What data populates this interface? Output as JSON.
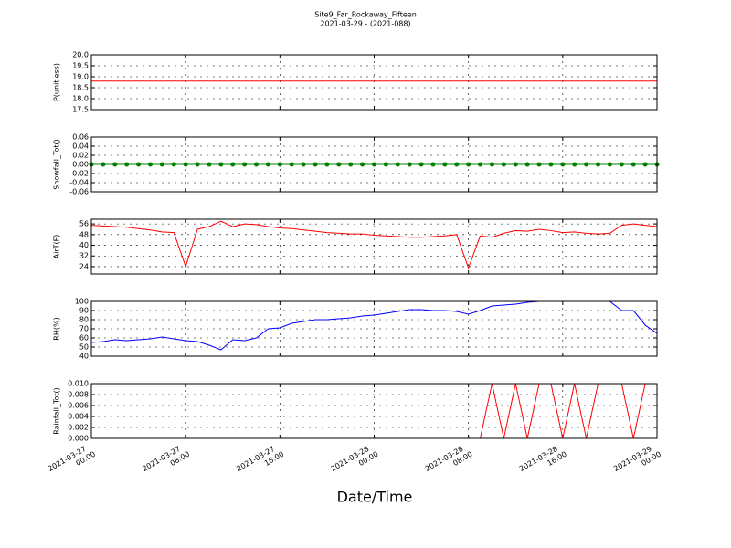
{
  "title": "Site9_Far_Rockaway_Fifteen",
  "subtitle": "2021-03-29 - (2021-088)",
  "xlabel": "Date/Time",
  "chart_data": [
    {
      "type": "line",
      "ylabel": "P(unitless)",
      "color": "#ff0000",
      "grid": true,
      "xlim": [
        "2021-03-27 00:00",
        "2021-03-29 00:00"
      ],
      "xticks": [
        "2021-03-27 00:00",
        "2021-03-27 08:00",
        "2021-03-27 16:00",
        "2021-03-28 00:00",
        "2021-03-28 08:00",
        "2021-03-28 16:00",
        "2021-03-29 00:00"
      ],
      "ylim": [
        17.5,
        20
      ],
      "yticks": [
        17.5,
        {
          "value": 18,
          "label": "18.0"
        },
        18.5,
        {
          "value": 19,
          "label": "19.0"
        },
        19.5,
        {
          "value": 20,
          "label": "20.0"
        }
      ],
      "x": [
        "2021-03-27 00:00",
        "2021-03-27 01:00",
        "2021-03-27 02:00",
        "2021-03-27 03:00",
        "2021-03-27 04:00",
        "2021-03-27 05:00",
        "2021-03-27 06:00",
        "2021-03-27 07:00",
        "2021-03-27 08:00",
        "2021-03-27 09:00",
        "2021-03-27 10:00",
        "2021-03-27 11:00",
        "2021-03-27 12:00",
        "2021-03-27 13:00",
        "2021-03-27 14:00",
        "2021-03-27 15:00",
        "2021-03-27 16:00",
        "2021-03-27 17:00",
        "2021-03-27 18:00",
        "2021-03-27 19:00",
        "2021-03-27 20:00",
        "2021-03-27 21:00",
        "2021-03-27 22:00",
        "2021-03-27 23:00",
        "2021-03-28 00:00",
        "2021-03-28 01:00",
        "2021-03-28 02:00",
        "2021-03-28 03:00",
        "2021-03-28 04:00",
        "2021-03-28 05:00",
        "2021-03-28 06:00",
        "2021-03-28 07:00",
        "2021-03-28 08:00",
        "2021-03-28 09:00",
        "2021-03-28 10:00",
        "2021-03-28 11:00",
        "2021-03-28 12:00",
        "2021-03-28 13:00",
        "2021-03-28 14:00",
        "2021-03-28 15:00",
        "2021-03-28 16:00",
        "2021-03-28 17:00",
        "2021-03-28 18:00",
        "2021-03-28 19:00",
        "2021-03-28 20:00",
        "2021-03-28 21:00",
        "2021-03-28 22:00",
        "2021-03-28 23:00",
        "2021-03-29 00:00"
      ],
      "values": [
        18.8,
        18.8,
        18.8,
        18.8,
        18.8,
        18.8,
        18.8,
        18.8,
        18.8,
        18.8,
        18.8,
        18.8,
        18.8,
        18.8,
        18.8,
        18.8,
        18.8,
        18.8,
        18.8,
        18.8,
        18.8,
        18.8,
        18.8,
        18.8,
        18.8,
        18.8,
        18.8,
        18.8,
        18.8,
        18.8,
        18.8,
        18.8,
        18.8,
        18.8,
        18.8,
        18.8,
        18.8,
        18.8,
        18.8,
        18.8,
        18.8,
        18.8,
        18.8,
        18.8,
        18.8,
        18.8,
        18.8,
        18.8,
        18.8
      ]
    },
    {
      "type": "line",
      "ylabel": "Snowfall_Tot()",
      "color": "#008000",
      "marker": "o",
      "grid": true,
      "xlim": [
        "2021-03-27 00:00",
        "2021-03-29 00:00"
      ],
      "xticks": [
        "2021-03-27 00:00",
        "2021-03-27 08:00",
        "2021-03-27 16:00",
        "2021-03-28 00:00",
        "2021-03-28 08:00",
        "2021-03-28 16:00",
        "2021-03-29 00:00"
      ],
      "ylim": [
        -0.06,
        0.06
      ],
      "yticks": [
        -0.06,
        -0.04,
        -0.02,
        {
          "value": 0,
          "label": "0.00"
        },
        0.02,
        0.04,
        0.06
      ],
      "x": [
        "2021-03-27 00:00",
        "2021-03-27 01:00",
        "2021-03-27 02:00",
        "2021-03-27 03:00",
        "2021-03-27 04:00",
        "2021-03-27 05:00",
        "2021-03-27 06:00",
        "2021-03-27 07:00",
        "2021-03-27 08:00",
        "2021-03-27 09:00",
        "2021-03-27 10:00",
        "2021-03-27 11:00",
        "2021-03-27 12:00",
        "2021-03-27 13:00",
        "2021-03-27 14:00",
        "2021-03-27 15:00",
        "2021-03-27 16:00",
        "2021-03-27 17:00",
        "2021-03-27 18:00",
        "2021-03-27 19:00",
        "2021-03-27 20:00",
        "2021-03-27 21:00",
        "2021-03-27 22:00",
        "2021-03-27 23:00",
        "2021-03-28 00:00",
        "2021-03-28 01:00",
        "2021-03-28 02:00",
        "2021-03-28 03:00",
        "2021-03-28 04:00",
        "2021-03-28 05:00",
        "2021-03-28 06:00",
        "2021-03-28 07:00",
        "2021-03-28 08:00",
        "2021-03-28 09:00",
        "2021-03-28 10:00",
        "2021-03-28 11:00",
        "2021-03-28 12:00",
        "2021-03-28 13:00",
        "2021-03-28 14:00",
        "2021-03-28 15:00",
        "2021-03-28 16:00",
        "2021-03-28 17:00",
        "2021-03-28 18:00",
        "2021-03-28 19:00",
        "2021-03-28 20:00",
        "2021-03-28 21:00",
        "2021-03-28 22:00",
        "2021-03-28 23:00",
        "2021-03-29 00:00"
      ],
      "values": [
        0,
        0,
        0,
        0,
        0,
        0,
        0,
        0,
        0,
        0,
        0,
        0,
        0,
        0,
        0,
        0,
        0,
        0,
        0,
        0,
        0,
        0,
        0,
        0,
        0,
        0,
        0,
        0,
        0,
        0,
        0,
        0,
        0,
        0,
        0,
        0,
        0,
        0,
        0,
        0,
        0,
        0,
        0,
        0,
        0,
        0,
        0,
        0,
        0
      ]
    },
    {
      "type": "line",
      "ylabel": "AirT(F)",
      "color": "#ff0000",
      "grid": true,
      "xlim": [
        "2021-03-27 00:00",
        "2021-03-29 00:00"
      ],
      "xticks": [
        "2021-03-27 00:00",
        "2021-03-27 08:00",
        "2021-03-27 16:00",
        "2021-03-28 00:00",
        "2021-03-28 08:00",
        "2021-03-28 16:00",
        "2021-03-29 00:00"
      ],
      "ylim": [
        18.5,
        59.5
      ],
      "yticks": [
        24,
        32,
        40,
        48,
        56
      ],
      "x": [
        "2021-03-27 00:00",
        "2021-03-27 01:00",
        "2021-03-27 02:00",
        "2021-03-27 03:00",
        "2021-03-27 04:00",
        "2021-03-27 05:00",
        "2021-03-27 06:00",
        "2021-03-27 07:00",
        "2021-03-27 08:00",
        "2021-03-27 09:00",
        "2021-03-27 10:00",
        "2021-03-27 11:00",
        "2021-03-27 12:00",
        "2021-03-27 13:00",
        "2021-03-27 14:00",
        "2021-03-27 15:00",
        "2021-03-27 16:00",
        "2021-03-27 17:00",
        "2021-03-27 18:00",
        "2021-03-27 19:00",
        "2021-03-27 20:00",
        "2021-03-27 21:00",
        "2021-03-27 22:00",
        "2021-03-27 23:00",
        "2021-03-28 00:00",
        "2021-03-28 01:00",
        "2021-03-28 02:00",
        "2021-03-28 03:00",
        "2021-03-28 04:00",
        "2021-03-28 05:00",
        "2021-03-28 06:00",
        "2021-03-28 07:00",
        "2021-03-28 08:00",
        "2021-03-28 09:00",
        "2021-03-28 10:00",
        "2021-03-28 11:00",
        "2021-03-28 12:00",
        "2021-03-28 13:00",
        "2021-03-28 14:00",
        "2021-03-28 15:00",
        "2021-03-28 16:00",
        "2021-03-28 17:00",
        "2021-03-28 18:00",
        "2021-03-28 19:00",
        "2021-03-28 20:00",
        "2021-03-28 21:00",
        "2021-03-28 22:00",
        "2021-03-28 23:00",
        "2021-03-29 00:00"
      ],
      "values": [
        55,
        54.5,
        54,
        53.5,
        52.5,
        51.5,
        50,
        49.5,
        24,
        52,
        54,
        58,
        54,
        56,
        55.5,
        54,
        53,
        52.5,
        51.5,
        50.5,
        49.5,
        49,
        48.5,
        48.5,
        47.5,
        47,
        46.5,
        46,
        46,
        46.5,
        47,
        48,
        23,
        47,
        46,
        49,
        51,
        50.5,
        52,
        51,
        49.5,
        50,
        49,
        48.5,
        49,
        55,
        56,
        55,
        54
      ]
    },
    {
      "type": "line",
      "ylabel": "RH(%)",
      "color": "#0000ff",
      "grid": true,
      "xlim": [
        "2021-03-27 00:00",
        "2021-03-29 00:00"
      ],
      "xticks": [
        "2021-03-27 00:00",
        "2021-03-27 08:00",
        "2021-03-27 16:00",
        "2021-03-28 00:00",
        "2021-03-28 08:00",
        "2021-03-28 16:00",
        "2021-03-29 00:00"
      ],
      "ylim": [
        40,
        100
      ],
      "yticks": [
        40,
        50,
        60,
        70,
        80,
        90,
        100
      ],
      "x": [
        "2021-03-27 00:00",
        "2021-03-27 01:00",
        "2021-03-27 02:00",
        "2021-03-27 03:00",
        "2021-03-27 04:00",
        "2021-03-27 05:00",
        "2021-03-27 06:00",
        "2021-03-27 07:00",
        "2021-03-27 08:00",
        "2021-03-27 09:00",
        "2021-03-27 10:00",
        "2021-03-27 11:00",
        "2021-03-27 12:00",
        "2021-03-27 13:00",
        "2021-03-27 14:00",
        "2021-03-27 15:00",
        "2021-03-27 16:00",
        "2021-03-27 17:00",
        "2021-03-27 18:00",
        "2021-03-27 19:00",
        "2021-03-27 20:00",
        "2021-03-27 21:00",
        "2021-03-27 22:00",
        "2021-03-27 23:00",
        "2021-03-28 00:00",
        "2021-03-28 01:00",
        "2021-03-28 02:00",
        "2021-03-28 03:00",
        "2021-03-28 04:00",
        "2021-03-28 05:00",
        "2021-03-28 06:00",
        "2021-03-28 07:00",
        "2021-03-28 08:00",
        "2021-03-28 09:00",
        "2021-03-28 10:00",
        "2021-03-28 11:00",
        "2021-03-28 12:00",
        "2021-03-28 13:00",
        "2021-03-28 14:00",
        "2021-03-28 15:00",
        "2021-03-28 16:00",
        "2021-03-28 17:00",
        "2021-03-28 18:00",
        "2021-03-28 19:00",
        "2021-03-28 20:00",
        "2021-03-28 21:00",
        "2021-03-28 22:00",
        "2021-03-28 23:00",
        "2021-03-29 00:00"
      ],
      "values": [
        55,
        56,
        58,
        57,
        58,
        59,
        61,
        59,
        57,
        56,
        52,
        47,
        58,
        57,
        60,
        70,
        71,
        76,
        78,
        80,
        80,
        81,
        82,
        84,
        85,
        87,
        89,
        91,
        91,
        90,
        90,
        89,
        86,
        90,
        95,
        96,
        97,
        99,
        100,
        100,
        100,
        100,
        100,
        100,
        100,
        90,
        90,
        74,
        65
      ]
    },
    {
      "type": "line",
      "ylabel": "Rainfall_Tot()",
      "color": "#ff0000",
      "grid": true,
      "xlim": [
        "2021-03-27 00:00",
        "2021-03-29 00:00"
      ],
      "xticks": [
        "2021-03-27 00:00",
        "2021-03-27 08:00",
        "2021-03-27 16:00",
        "2021-03-28 00:00",
        "2021-03-28 08:00",
        "2021-03-28 16:00",
        "2021-03-29 00:00"
      ],
      "ylim": [
        0,
        0.01
      ],
      "yticks": [
        {
          "value": 0,
          "label": "0.000"
        },
        {
          "value": 0.002,
          "label": "0.002"
        },
        {
          "value": 0.004,
          "label": "0.004"
        },
        {
          "value": 0.006,
          "label": "0.006"
        },
        {
          "value": 0.008,
          "label": "0.008"
        },
        {
          "value": 0.01,
          "label": "0.010"
        }
      ],
      "x": [
        "2021-03-27 00:00",
        "2021-03-27 01:00",
        "2021-03-27 02:00",
        "2021-03-27 03:00",
        "2021-03-27 04:00",
        "2021-03-27 05:00",
        "2021-03-27 06:00",
        "2021-03-27 07:00",
        "2021-03-27 08:00",
        "2021-03-27 09:00",
        "2021-03-27 10:00",
        "2021-03-27 11:00",
        "2021-03-27 12:00",
        "2021-03-27 13:00",
        "2021-03-27 14:00",
        "2021-03-27 15:00",
        "2021-03-27 16:00",
        "2021-03-27 17:00",
        "2021-03-27 18:00",
        "2021-03-27 19:00",
        "2021-03-27 20:00",
        "2021-03-27 21:00",
        "2021-03-27 22:00",
        "2021-03-27 23:00",
        "2021-03-28 00:00",
        "2021-03-28 01:00",
        "2021-03-28 02:00",
        "2021-03-28 03:00",
        "2021-03-28 04:00",
        "2021-03-28 05:00",
        "2021-03-28 06:00",
        "2021-03-28 07:00",
        "2021-03-28 08:00",
        "2021-03-28 09:00",
        "2021-03-28 10:00",
        "2021-03-28 11:00",
        "2021-03-28 12:00",
        "2021-03-28 13:00",
        "2021-03-28 14:00",
        "2021-03-28 15:00",
        "2021-03-28 16:00",
        "2021-03-28 17:00",
        "2021-03-28 18:00",
        "2021-03-28 19:00",
        "2021-03-28 20:00",
        "2021-03-28 21:00",
        "2021-03-28 22:00",
        "2021-03-28 23:00",
        "2021-03-29 00:00"
      ],
      "values": [
        0,
        0,
        0,
        0,
        0,
        0,
        0,
        0,
        0,
        0,
        0,
        0,
        0,
        0,
        0,
        0,
        0,
        0,
        0,
        0,
        0,
        0,
        0,
        0,
        0,
        0,
        0,
        0,
        0,
        0,
        0,
        0,
        0,
        0,
        0.01,
        0,
        0.01,
        0,
        0.01,
        0.01,
        0,
        0.01,
        0,
        0.01,
        0.01,
        0.01,
        0,
        0.01,
        0.01
      ]
    }
  ]
}
